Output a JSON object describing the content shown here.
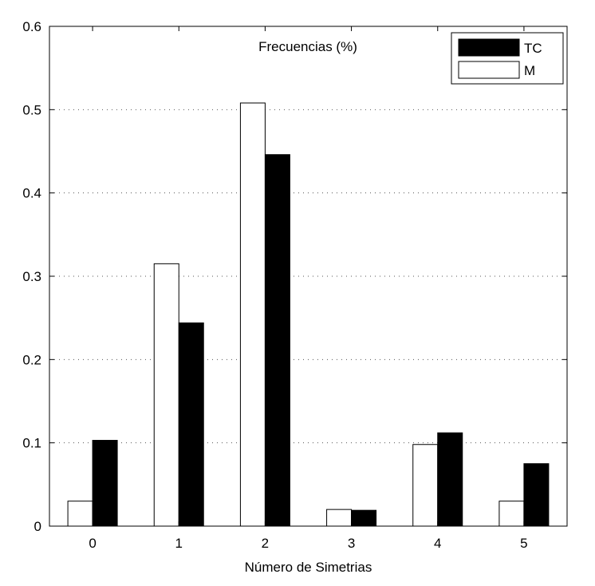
{
  "chart_data": {
    "type": "bar",
    "title": "Frecuencias (%)",
    "xlabel": "Número de Simetrias",
    "ylabel": "",
    "categories": [
      "0",
      "1",
      "2",
      "3",
      "4",
      "5"
    ],
    "series": [
      {
        "name": "M",
        "color": "#ffffff",
        "values": [
          0.03,
          0.315,
          0.508,
          0.02,
          0.098,
          0.03
        ]
      },
      {
        "name": "TC",
        "color": "#000000",
        "values": [
          0.103,
          0.244,
          0.446,
          0.019,
          0.112,
          0.075
        ]
      }
    ],
    "legend_order": [
      "TC",
      "M"
    ],
    "ylim": [
      0,
      0.6
    ],
    "yticks": [
      "0",
      "0.1",
      "0.2",
      "0.3",
      "0.4",
      "0.5",
      "0.6"
    ],
    "grid": "horizontal dotted",
    "legend_position": "top-right"
  }
}
